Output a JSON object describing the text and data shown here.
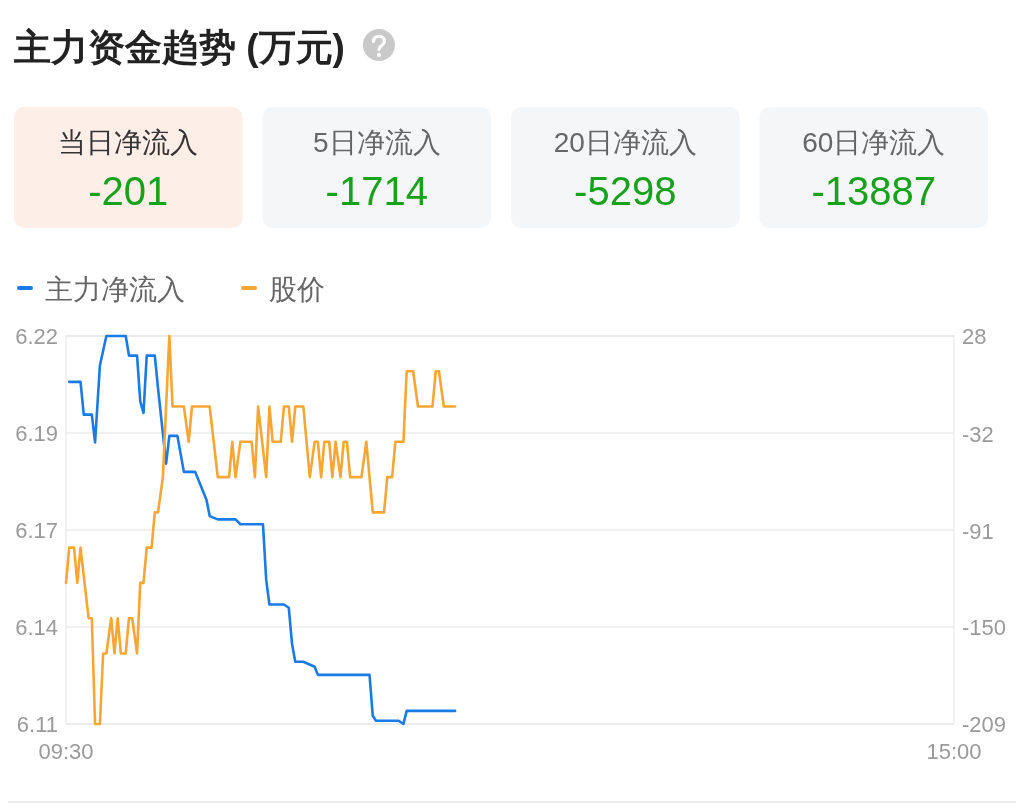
{
  "chart_data": [
    {
      "type": "other",
      "title": "主力资金趋势 (万元)",
      "categories": [
        "当日净流入",
        "5日净流入",
        "20日净流入",
        "60日净流入"
      ],
      "values": [
        -201,
        -1714,
        -5298,
        -13887
      ],
      "colors": [
        "#fdeee8",
        "#f5f6f8",
        "#f5f6f8",
        "#f5f6f8"
      ],
      "data_labels": true
    },
    {
      "type": "line",
      "legend": "top left",
      "grid": "y",
      "xlim": [
        9.5,
        15
      ],
      "xticks": [
        {
          "value": 9.5,
          "label": "09:30"
        },
        {
          "value": 15,
          "label": "15:00"
        }
      ],
      "ylim": [
        6.11,
        6.22
      ],
      "yticks": [
        6.22,
        {
          "value": 6.1925,
          "label": "6.19"
        },
        {
          "value": 6.165,
          "label": "6.17"
        },
        {
          "value": 6.1375,
          "label": "6.14"
        },
        6.11
      ],
      "y2lim": [
        -209,
        28
      ],
      "y2ticks": [
        28,
        -32,
        -91,
        -150,
        -209
      ],
      "series": [
        {
          "name": "主力净流入",
          "color": "#1a7ae6",
          "axis": "y2",
          "x": [
            9.52,
            9.59,
            9.61,
            9.66,
            9.68,
            9.71,
            9.75,
            9.87,
            9.89,
            9.94,
            9.96,
            9.98,
            10.0,
            10.05,
            10.07,
            10.12,
            10.14,
            10.19,
            10.23,
            10.3,
            10.37,
            10.39,
            10.44,
            10.55,
            10.58,
            10.72,
            10.74,
            10.76,
            10.85,
            10.88,
            10.9,
            10.92,
            10.97,
            11.04,
            11.06,
            11.38,
            11.4,
            11.42,
            11.56,
            11.59,
            11.61,
            11.91
          ],
          "values": [
            0,
            0,
            -20,
            -20,
            -37,
            10,
            28,
            28,
            16,
            16,
            -12,
            -19,
            16,
            16,
            -4,
            -50,
            -33,
            -33,
            -55,
            -55,
            -72,
            -82,
            -84,
            -84,
            -87,
            -87,
            -121,
            -136,
            -136,
            -138,
            -160,
            -171,
            -171,
            -174,
            -179,
            -179,
            -204,
            -207,
            -207,
            -209,
            -201,
            -201
          ]
        },
        {
          "name": "股价",
          "color": "#f8a633",
          "axis": "y",
          "x": [
            9.5,
            9.52,
            9.55,
            9.57,
            9.59,
            9.64,
            9.66,
            9.68,
            9.71,
            9.73,
            9.75,
            9.78,
            9.8,
            9.82,
            9.84,
            9.87,
            9.89,
            9.91,
            9.94,
            9.96,
            9.98,
            10.0,
            10.03,
            10.05,
            10.07,
            10.1,
            10.14,
            10.16,
            10.23,
            10.26,
            10.28,
            10.39,
            10.44,
            10.51,
            10.53,
            10.55,
            10.58,
            10.65,
            10.67,
            10.69,
            10.74,
            10.76,
            10.78,
            10.83,
            10.85,
            10.88,
            10.9,
            10.92,
            10.97,
            11.01,
            11.04,
            11.06,
            11.08,
            11.1,
            11.13,
            11.15,
            11.17,
            11.2,
            11.22,
            11.24,
            11.26,
            11.33,
            11.36,
            11.4,
            11.47,
            11.49,
            11.52,
            11.54,
            11.59,
            11.61,
            11.65,
            11.68,
            11.77,
            11.79,
            11.81,
            11.84,
            11.91
          ],
          "values": [
            6.15,
            6.16,
            6.16,
            6.15,
            6.16,
            6.14,
            6.14,
            6.11,
            6.11,
            6.13,
            6.13,
            6.14,
            6.13,
            6.14,
            6.13,
            6.13,
            6.14,
            6.14,
            6.13,
            6.15,
            6.15,
            6.16,
            6.16,
            6.17,
            6.17,
            6.18,
            6.22,
            6.2,
            6.2,
            6.19,
            6.2,
            6.2,
            6.18,
            6.18,
            6.19,
            6.18,
            6.19,
            6.19,
            6.18,
            6.2,
            6.18,
            6.2,
            6.19,
            6.19,
            6.2,
            6.2,
            6.19,
            6.2,
            6.2,
            6.18,
            6.19,
            6.19,
            6.18,
            6.19,
            6.19,
            6.18,
            6.19,
            6.18,
            6.19,
            6.19,
            6.18,
            6.18,
            6.19,
            6.17,
            6.17,
            6.18,
            6.18,
            6.19,
            6.19,
            6.21,
            6.21,
            6.2,
            6.2,
            6.21,
            6.21,
            6.2,
            6.2
          ]
        }
      ]
    }
  ]
}
